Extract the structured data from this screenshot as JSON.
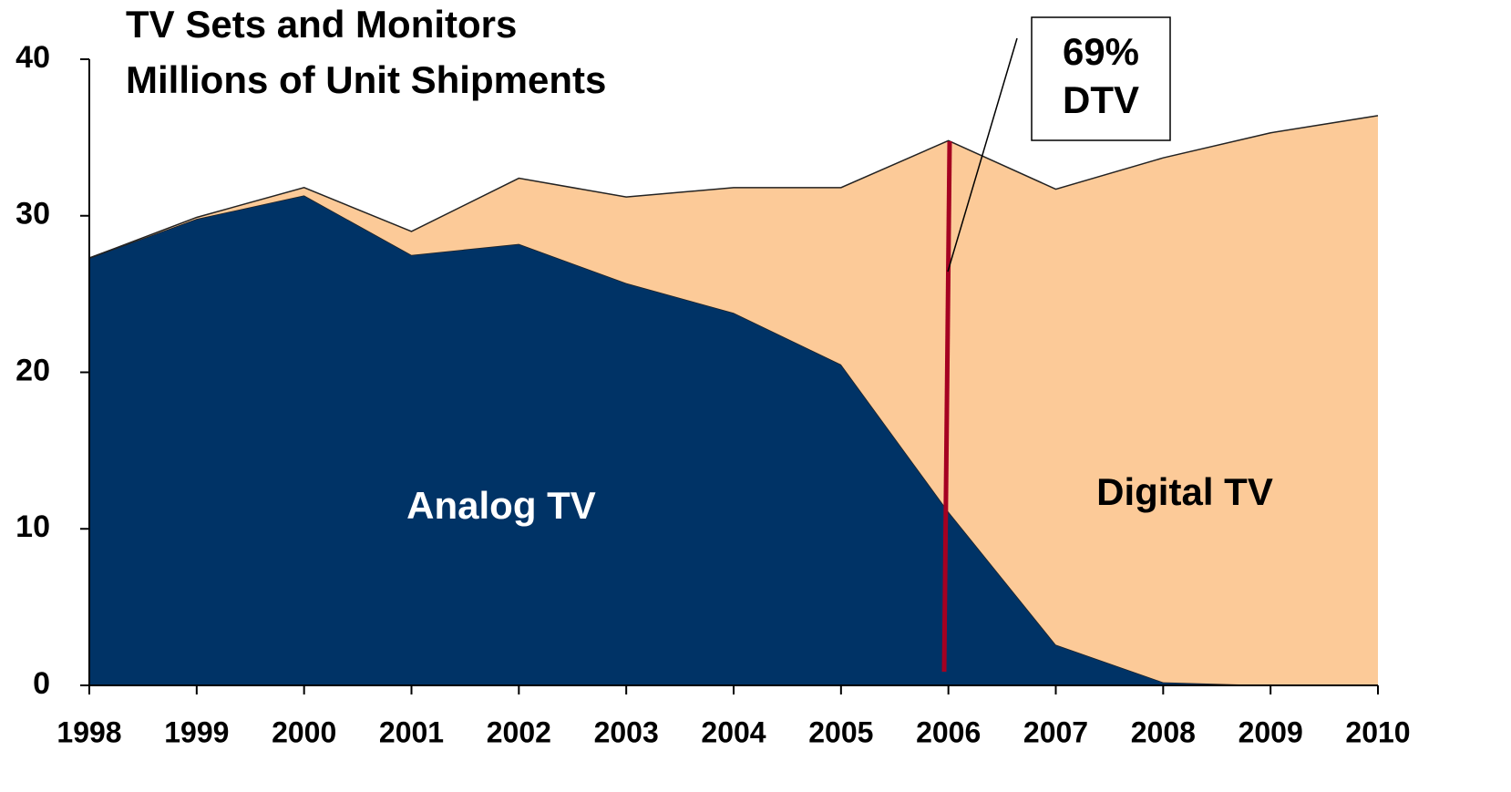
{
  "chart_data": {
    "type": "stacked_area",
    "title": "TV Sets and Monitors",
    "subtitle": "Millions of Unit Shipments",
    "x": [
      1998,
      1999,
      2000,
      2001,
      2002,
      2003,
      2004,
      2005,
      2006,
      2007,
      2008,
      2009,
      2010
    ],
    "series": [
      {
        "name": "Analog TV",
        "color": "#003366",
        "values": [
          27.3,
          29.8,
          31.3,
          27.5,
          28.2,
          25.7,
          23.8,
          20.5,
          11.1,
          2.6,
          0.2,
          0,
          0
        ]
      },
      {
        "name": "Digital TV",
        "color": "#fcca98",
        "values": [
          0,
          0.1,
          0.5,
          1.5,
          4.2,
          5.5,
          8.0,
          11.3,
          23.7,
          29.1,
          33.5,
          35.3,
          36.4
        ]
      }
    ],
    "xlim": [
      1998,
      2010
    ],
    "xticks": [
      1998,
      1999,
      2000,
      2001,
      2002,
      2003,
      2004,
      2005,
      2006,
      2007,
      2008,
      2009,
      2010
    ],
    "ylim": [
      0,
      40
    ],
    "yticks": [
      0,
      10,
      20,
      30,
      40
    ],
    "annotation": [
      "69%",
      "DTV"
    ]
  }
}
